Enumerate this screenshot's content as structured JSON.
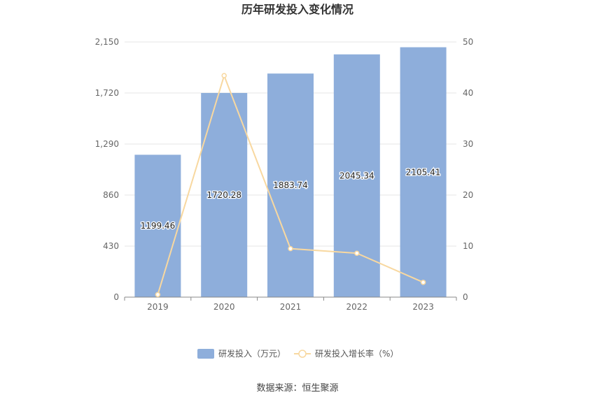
{
  "chart_data": {
    "type": "bar",
    "title": "历年研发投入变化情况",
    "categories": [
      "2019",
      "2020",
      "2021",
      "2022",
      "2023"
    ],
    "series": [
      {
        "name": "研发投入（万元）",
        "type": "bar",
        "axis": "left",
        "values": [
          1199.46,
          1720.28,
          1883.74,
          2045.34,
          2105.41
        ],
        "labels": [
          "1199.46",
          "1720.28",
          "1883.74",
          "2045.34",
          "2105.41"
        ],
        "color": "#8eaedb"
      },
      {
        "name": "研发投入增长率（%）",
        "type": "line",
        "axis": "right",
        "values": [
          0.5,
          43.4,
          9.5,
          8.6,
          2.9
        ],
        "color": "#f8d8a0"
      }
    ],
    "y_left": {
      "min": 0,
      "max": 2150,
      "ticks": [
        0,
        430,
        860,
        1290,
        1720,
        2150
      ],
      "tick_labels": [
        "0",
        "430",
        "860",
        "1,290",
        "1,720",
        "2,150"
      ]
    },
    "y_right": {
      "min": 0,
      "max": 50,
      "ticks": [
        0,
        10,
        20,
        30,
        40,
        50
      ],
      "tick_labels": [
        "0",
        "10",
        "20",
        "30",
        "40",
        "50"
      ]
    },
    "grid": true,
    "legend_position": "bottom"
  },
  "source": "数据来源：恒生聚源"
}
